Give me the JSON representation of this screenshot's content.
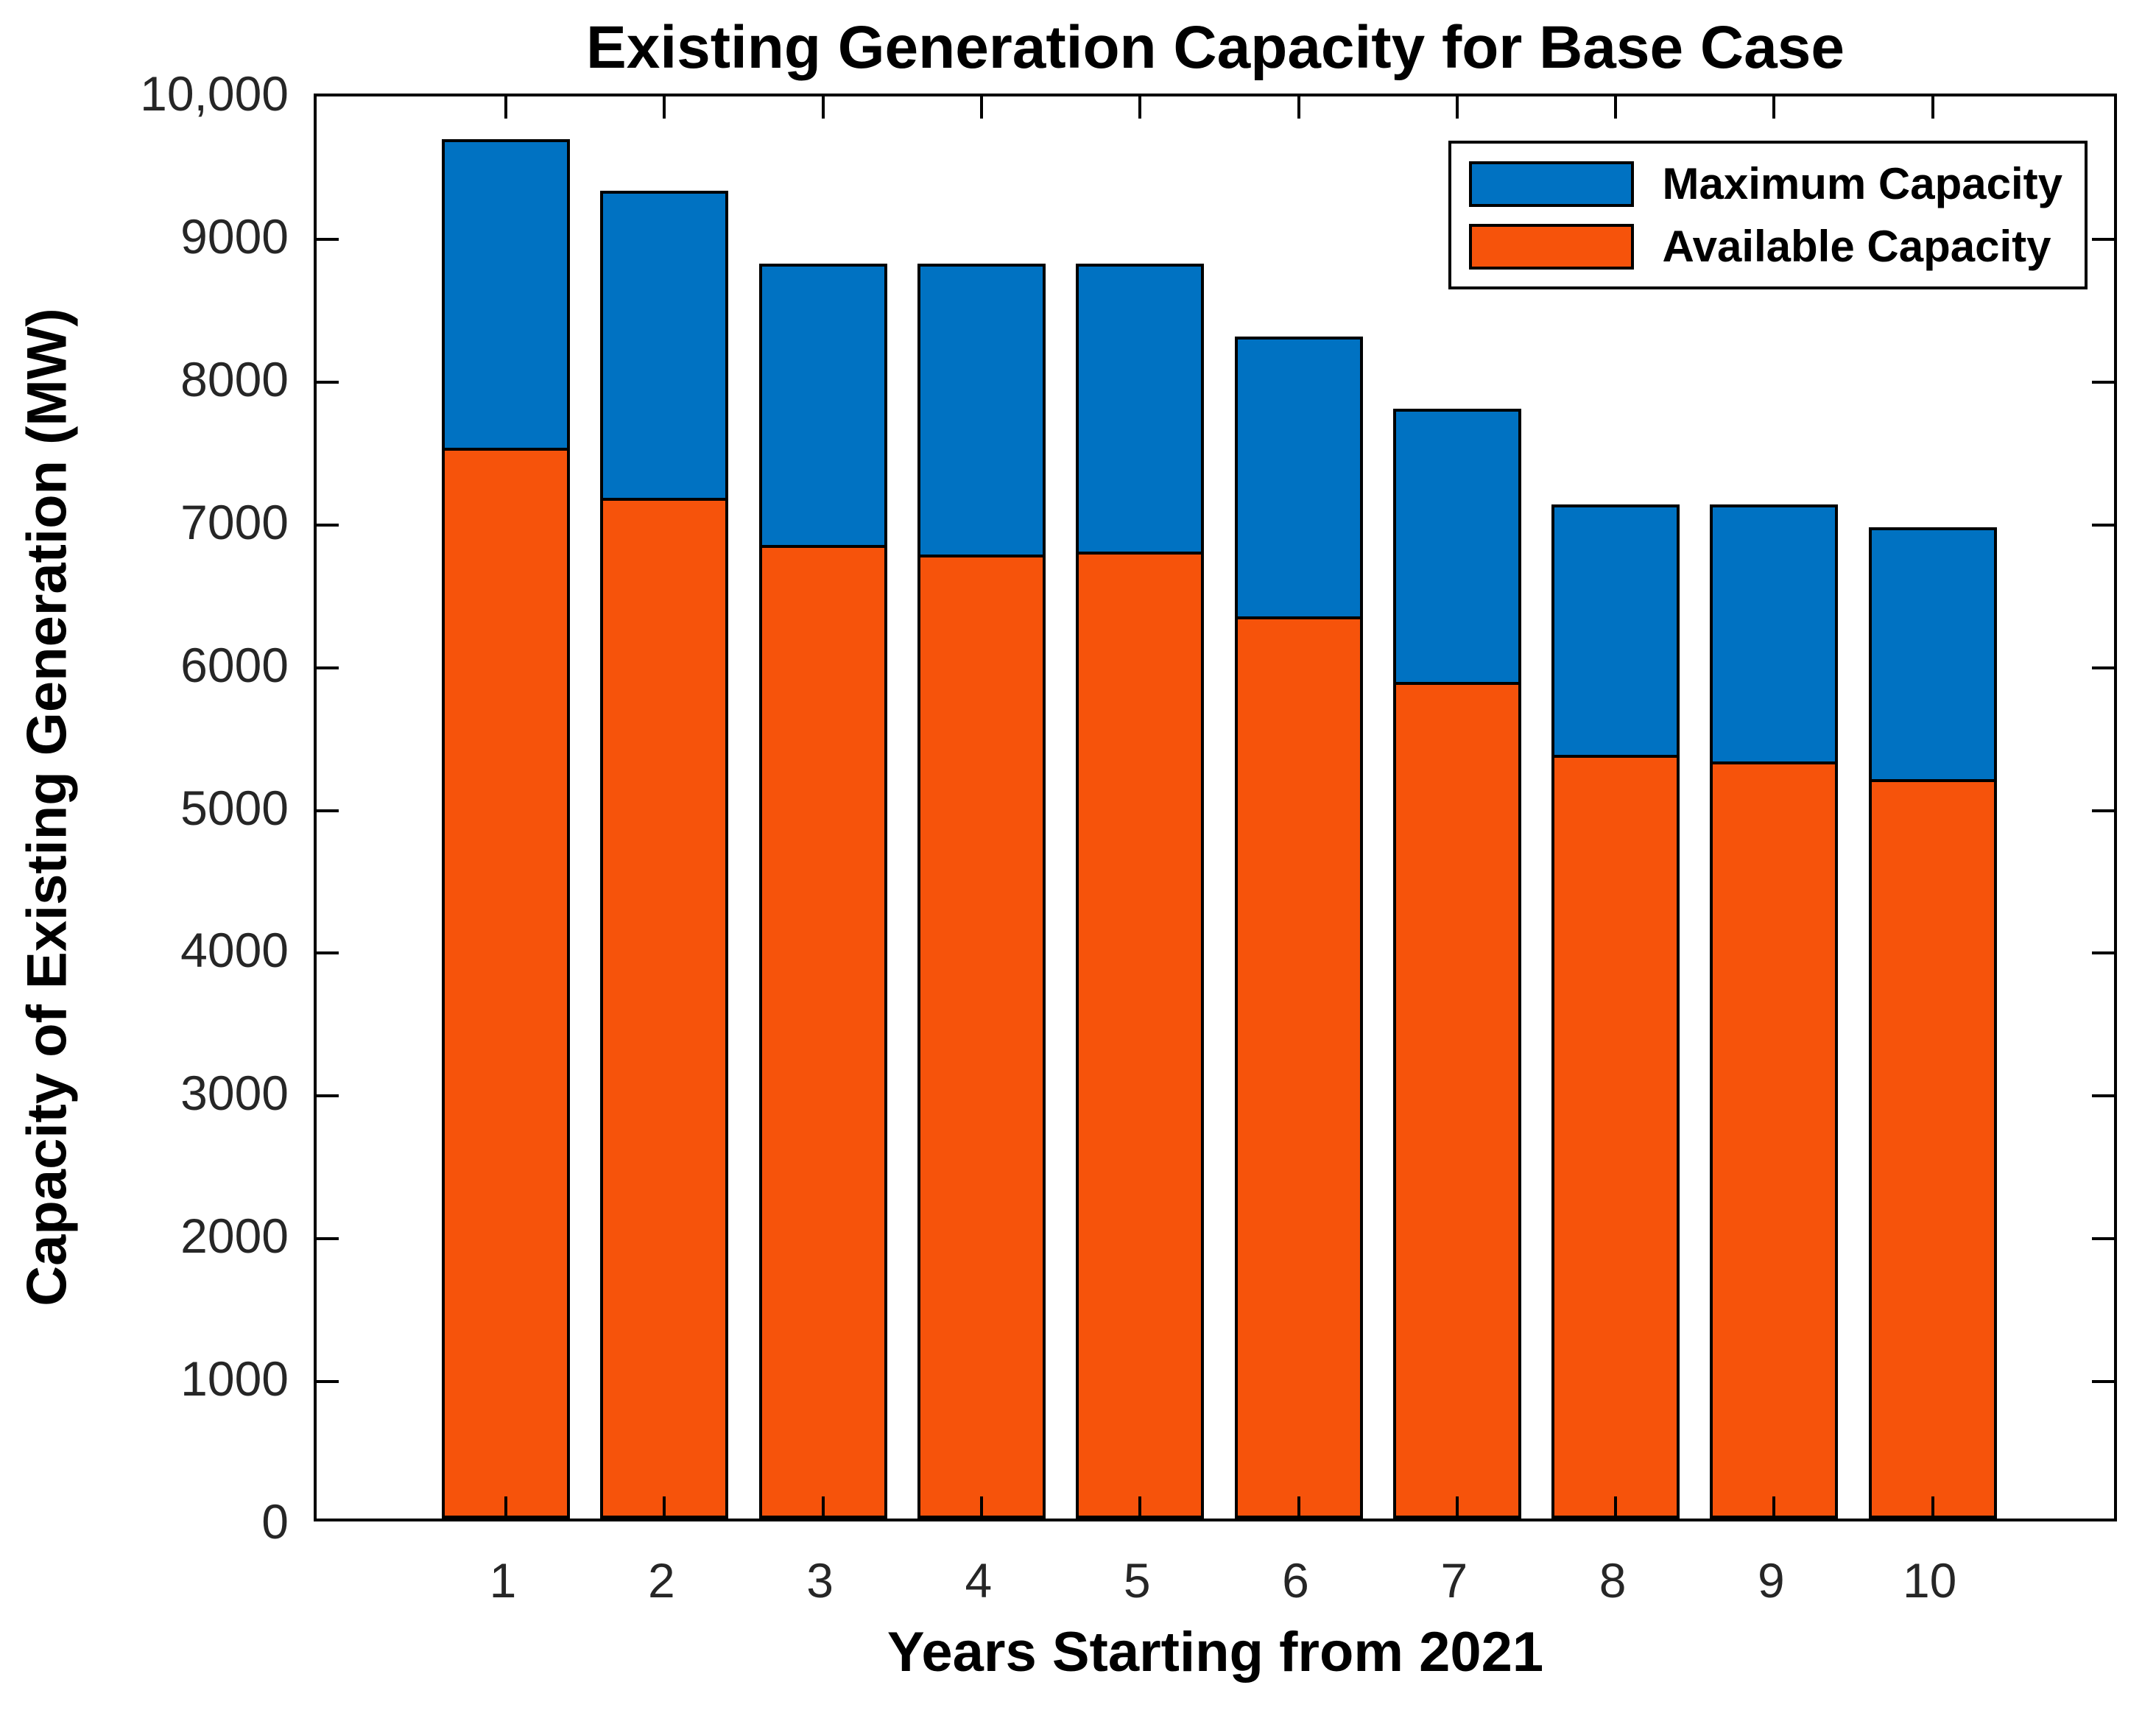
{
  "chart_data": {
    "type": "bar",
    "bar_style": "overlaid",
    "title": "Existing Generation Capacity for Base Case",
    "xlabel": "Years Starting from 2021",
    "ylabel": "Capacity of Existing Generation (MW)",
    "categories": [
      "1",
      "2",
      "3",
      "4",
      "5",
      "6",
      "7",
      "8",
      "9",
      "10"
    ],
    "series": [
      {
        "name": "Maximum Capacity",
        "color": "#0072C2",
        "values": [
          9660,
          9300,
          8790,
          8790,
          8790,
          8280,
          7770,
          7100,
          7100,
          6940
        ]
      },
      {
        "name": "Available Capacity",
        "color": "#F6530B",
        "values": [
          7500,
          7150,
          6820,
          6750,
          6770,
          6320,
          5860,
          5350,
          5300,
          5180
        ]
      }
    ],
    "ylim": [
      0,
      10000
    ],
    "y_ticks": [
      {
        "value": 0,
        "label": "0"
      },
      {
        "value": 1000,
        "label": "1000"
      },
      {
        "value": 2000,
        "label": "2000"
      },
      {
        "value": 3000,
        "label": "3000"
      },
      {
        "value": 4000,
        "label": "4000"
      },
      {
        "value": 5000,
        "label": "5000"
      },
      {
        "value": 6000,
        "label": "6000"
      },
      {
        "value": 7000,
        "label": "7000"
      },
      {
        "value": 8000,
        "label": "8000"
      },
      {
        "value": 9000,
        "label": "9000"
      },
      {
        "value": 10000,
        "label": "10,000"
      }
    ],
    "grid": false,
    "legend_position": "top-right"
  },
  "colors": {
    "axis": "#000000",
    "tick_label": "#262626",
    "background": "#FFFFFF"
  }
}
